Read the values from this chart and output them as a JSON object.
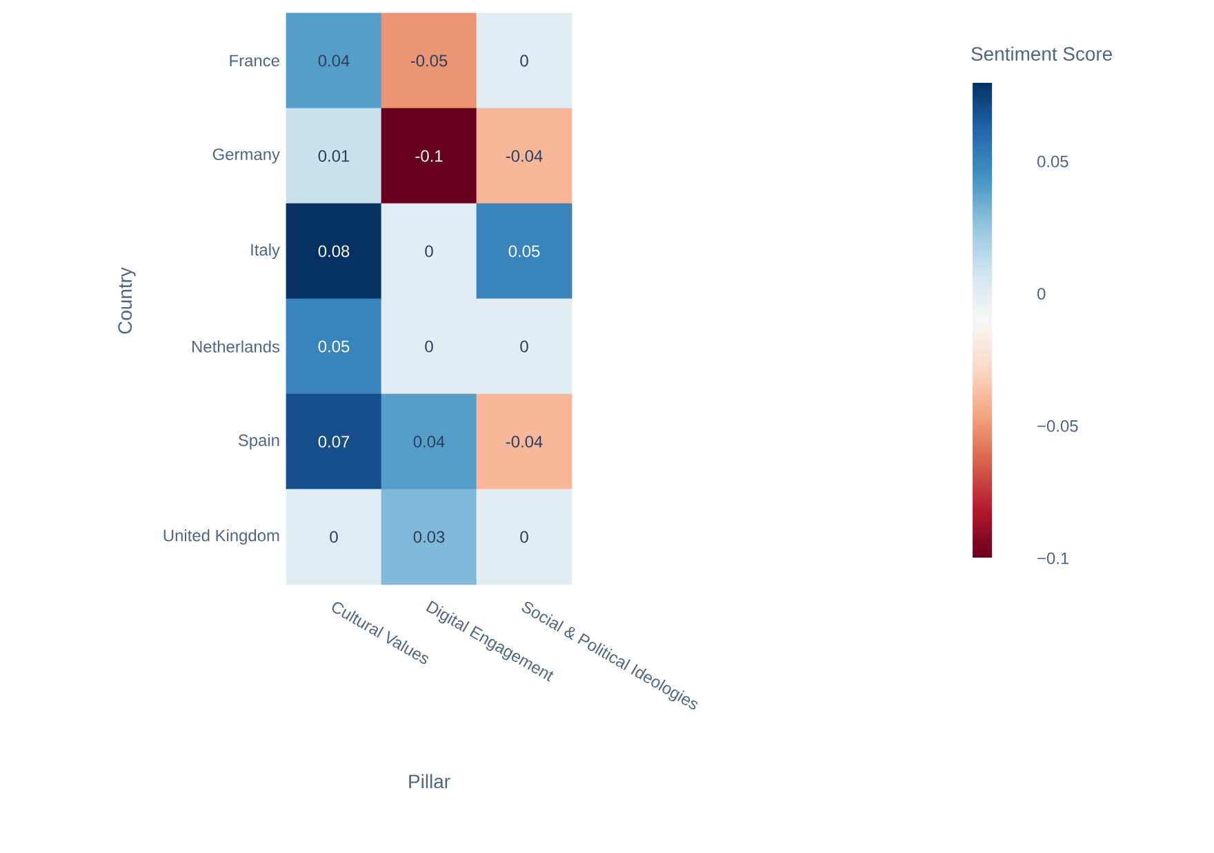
{
  "chart_data": {
    "type": "heatmap",
    "categories": [
      "Cultural Values",
      "Digital Engagement",
      "Social & Political Ideologies"
    ],
    "y_categories": [
      "France",
      "Germany",
      "Italy",
      "Netherlands",
      "Spain",
      "United Kingdom"
    ],
    "cells": [
      [
        0.04,
        -0.05,
        0
      ],
      [
        0.01,
        -0.1,
        -0.04
      ],
      [
        0.08,
        0,
        0.05
      ],
      [
        0.05,
        0,
        0
      ],
      [
        0.07,
        0.04,
        -0.04
      ],
      [
        0,
        0.03,
        0
      ]
    ],
    "data_labels": true,
    "xlabel": "Pillar",
    "ylabel": "Country",
    "clabel": "Sentiment Score",
    "clim": [
      -0.1,
      0.08
    ],
    "cticks": [
      {
        "value": -0.1,
        "label": "−0.1"
      },
      {
        "value": -0.05,
        "label": "−0.05"
      },
      0,
      0.05
    ]
  }
}
